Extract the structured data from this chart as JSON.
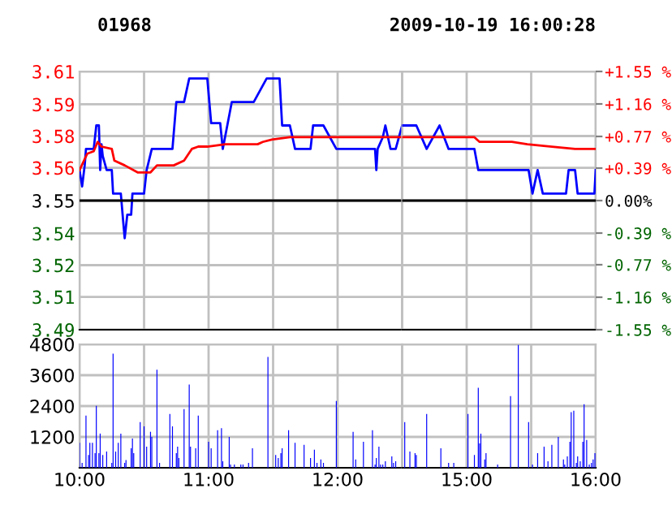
{
  "chart_data": [
    {
      "type": "line",
      "title": "01968",
      "grid": true,
      "legend": false,
      "tick_labels": "y",
      "xlim": [
        10,
        12.5
      ],
      "ylim": [
        3.495,
        3.605
      ],
      "yticks": [
        {
          "value": 3.495,
          "label": "3.49"
        },
        {
          "value": 3.509,
          "label": "3.51"
        },
        {
          "value": 3.5225,
          "label": "3.52"
        },
        {
          "value": 3.536,
          "label": "3.54"
        },
        {
          "value": 3.55,
          "label": "3.55"
        },
        {
          "value": 3.564,
          "label": "3.56"
        },
        {
          "value": 3.5775,
          "label": "3.58"
        },
        {
          "value": 3.591,
          "label": "3.59"
        },
        {
          "value": 3.605,
          "label": "3.61"
        }
      ],
      "ref_lines": [
        {
          "axis": "y",
          "value": 3.55,
          "color": "#000000"
        }
      ],
      "series": [
        {
          "color": "#0000ff",
          "x": [
            10,
            10.02,
            10.04,
            10.05,
            10.11,
            10.13,
            10.15,
            10.16,
            10.17,
            10.18,
            10.21,
            10.25,
            10.26,
            10.32,
            10.34,
            10.35,
            10.37,
            10.4,
            10.41,
            10.5,
            10.52,
            10.56,
            10.72,
            10.75,
            10.81,
            10.85,
            10.99,
            11.02,
            11.09,
            11.11,
            11.18,
            11.35,
            11.45,
            11.55,
            11.57,
            11.63,
            11.67,
            11.79,
            11.81,
            11.89,
            11.99,
            12.29,
            12.3,
            12.31,
            12.35,
            12.37,
            12.39,
            12.41,
            12.45,
            12.5
          ],
          "values": [
            3.563,
            3.556,
            3.565,
            3.572,
            3.572,
            3.582,
            3.582,
            3.563,
            3.574,
            3.569,
            3.563,
            3.563,
            3.553,
            3.553,
            3.54,
            3.534,
            3.544,
            3.544,
            3.553,
            3.553,
            3.563,
            3.572,
            3.572,
            3.592,
            3.592,
            3.602,
            3.602,
            3.583,
            3.583,
            3.572,
            3.592,
            3.592,
            3.602,
            3.602,
            3.582,
            3.582,
            3.572,
            3.572,
            3.582,
            3.582,
            3.572,
            3.572,
            3.563,
            3.572,
            3.577,
            3.582,
            3.577,
            3.572,
            3.572,
            3.582
          ]
        },
        {
          "color": "#ff0000",
          "x": [
            10,
            10.06,
            10.11,
            10.14,
            10.17,
            10.25,
            10.27,
            10.35,
            10.45,
            10.55,
            10.6,
            10.73,
            10.81,
            10.87,
            10.92,
            10.99,
            11.13,
            11.38,
            11.42,
            11.49,
            11.63,
            12.06,
            12.5
          ],
          "values": [
            3.563,
            3.57,
            3.571,
            3.575,
            3.573,
            3.572,
            3.567,
            3.565,
            3.562,
            3.562,
            3.565,
            3.565,
            3.567,
            3.572,
            3.573,
            3.573,
            3.574,
            3.574,
            3.575,
            3.576,
            3.577,
            3.577,
            3.577
          ]
        }
      ]
    },
    {
      "type": "line",
      "title": "2009-10-19 16:00:28",
      "grid": true,
      "tick_labels": false,
      "xlim": [
        14.5,
        16
      ],
      "ylim": [
        3.495,
        3.605
      ],
      "yticks": [
        3.495,
        3.509,
        3.5225,
        3.536,
        3.55,
        3.564,
        3.5775,
        3.591,
        3.605
      ],
      "y2lim": [
        -1.55,
        1.55
      ],
      "y2ticks": [
        {
          "value": -1.55,
          "label": "-1.55 %"
        },
        {
          "value": -1.16,
          "label": "-1.16 %"
        },
        {
          "value": -0.77,
          "label": "-0.77 %"
        },
        {
          "value": -0.39,
          "label": "-0.39 %"
        },
        {
          "value": 0,
          "label": "0.00%"
        },
        {
          "value": 0.39,
          "label": "+0.39 %"
        },
        {
          "value": 0.77,
          "label": "+0.77 %"
        },
        {
          "value": 1.16,
          "label": "+1.16 %"
        },
        {
          "value": 1.55,
          "label": "+1.55 %"
        }
      ],
      "ref_lines": [
        {
          "axis": "y",
          "value": 3.55,
          "color": "#000000"
        }
      ],
      "series": [
        {
          "color": "#0000ff",
          "x": [
            14.5,
            14.61,
            14.69,
            14.79,
            14.86,
            15.06,
            15.09,
            15.48,
            15.51,
            15.55,
            15.59,
            15.77,
            15.79,
            15.84,
            15.86,
            15.99,
            16
          ],
          "values": [
            3.582,
            3.582,
            3.572,
            3.582,
            3.572,
            3.572,
            3.563,
            3.563,
            3.553,
            3.563,
            3.553,
            3.553,
            3.563,
            3.563,
            3.553,
            3.553,
            3.563
          ]
        },
        {
          "color": "#ff0000",
          "x": [
            14.5,
            15.06,
            15.1,
            15.35,
            15.47,
            15.66,
            15.84,
            16
          ],
          "values": [
            3.577,
            3.577,
            3.575,
            3.575,
            3.574,
            3.573,
            3.572,
            3.572
          ]
        }
      ]
    },
    {
      "type": "bar",
      "grid": true,
      "xlim": [
        10,
        12.5
      ],
      "xticks": [
        {
          "value": 10,
          "label": "10:00"
        },
        {
          "value": 10.5,
          "label": null
        },
        {
          "value": 11,
          "label": "11:00"
        },
        {
          "value": 11.5,
          "label": null
        },
        {
          "value": 12,
          "label": "12:00"
        },
        {
          "value": 12.5,
          "label": null
        }
      ],
      "ylim": [
        0,
        4800
      ],
      "yticks": [
        1200,
        2400,
        3600,
        4800
      ],
      "color": "#0000ff",
      "x": [
        10,
        10.02,
        10.05,
        10.07,
        10.08,
        10.1,
        10.12,
        10.13,
        10.15,
        10.16,
        10.18,
        10.21,
        10.25,
        10.26,
        10.28,
        10.3,
        10.32,
        10.35,
        10.36,
        10.4,
        10.41,
        10.42,
        10.47,
        10.5,
        10.52,
        10.55,
        10.56,
        10.6,
        10.62,
        10.7,
        10.72,
        10.75,
        10.76,
        10.77,
        10.81,
        10.85,
        10.86,
        10.9,
        10.92,
        11,
        11.02,
        11.07,
        11.1,
        11.11,
        11.16,
        11.17,
        11.2,
        11.25,
        11.267,
        11.31,
        11.34,
        11.46,
        11.52,
        11.54,
        11.56,
        11.57,
        11.62,
        11.67,
        11.74,
        11.79,
        11.82,
        11.84,
        11.87,
        11.89,
        11.99,
        12.12,
        12.14,
        12.2,
        12.27,
        12.29,
        12.3,
        12.32,
        12.333,
        12.35,
        12.37,
        12.42,
        12.433,
        12.45
      ],
      "values": [
        970,
        190,
        2030,
        500,
        970,
        970,
        570,
        2410,
        570,
        1330,
        500,
        630,
        190,
        4440,
        630,
        970,
        1330,
        190,
        300,
        760,
        1140,
        570,
        1780,
        1610,
        820,
        1400,
        1200,
        3810,
        190,
        2090,
        1610,
        570,
        820,
        380,
        2280,
        3240,
        820,
        760,
        2030,
        1010,
        760,
        1460,
        1540,
        250,
        1200,
        130,
        130,
        130,
        130,
        190,
        760,
        4310,
        500,
        380,
        570,
        760,
        1460,
        970,
        890,
        380,
        700,
        190,
        320,
        190,
        2600,
        1400,
        320,
        1010,
        1460,
        130,
        380,
        820,
        130,
        130,
        250,
        440,
        190,
        250
      ]
    },
    {
      "type": "bar",
      "grid": true,
      "tick_labels": "x",
      "xlim": [
        14.5,
        16
      ],
      "xticks": [
        {
          "value": 14.5,
          "label": null
        },
        {
          "value": 15,
          "label": "15:00"
        },
        {
          "value": 15.5,
          "label": null
        },
        {
          "value": 16,
          "label": "16:00"
        }
      ],
      "ylim": [
        0,
        4800
      ],
      "yticks": [
        1200,
        2400,
        3600,
        4800
      ],
      "color": "#0000ff",
      "x": [
        14.52,
        14.56,
        14.6,
        14.61,
        14.69,
        14.8,
        14.86,
        14.9,
        15.01,
        15.06,
        15.09,
        15.1,
        15.11,
        15.14,
        15.15,
        15.24,
        15.34,
        15.4,
        15.48,
        15.51,
        15.55,
        15.6,
        15.63,
        15.66,
        15.71,
        15.75,
        15.76,
        15.78,
        15.8,
        15.81,
        15.83,
        15.85,
        15.86,
        15.88,
        15.9,
        15.91,
        15.93,
        15.95,
        15.967,
        15.98,
        15.994
      ],
      "values": [
        1780,
        630,
        570,
        500,
        2090,
        760,
        190,
        190,
        2090,
        500,
        3110,
        950,
        1330,
        320,
        570,
        130,
        2790,
        4780,
        1780,
        130,
        570,
        820,
        250,
        890,
        1200,
        320,
        130,
        440,
        1010,
        2160,
        2220,
        190,
        440,
        250,
        1010,
        2470,
        1080,
        130,
        190,
        320,
        570
      ]
    }
  ]
}
